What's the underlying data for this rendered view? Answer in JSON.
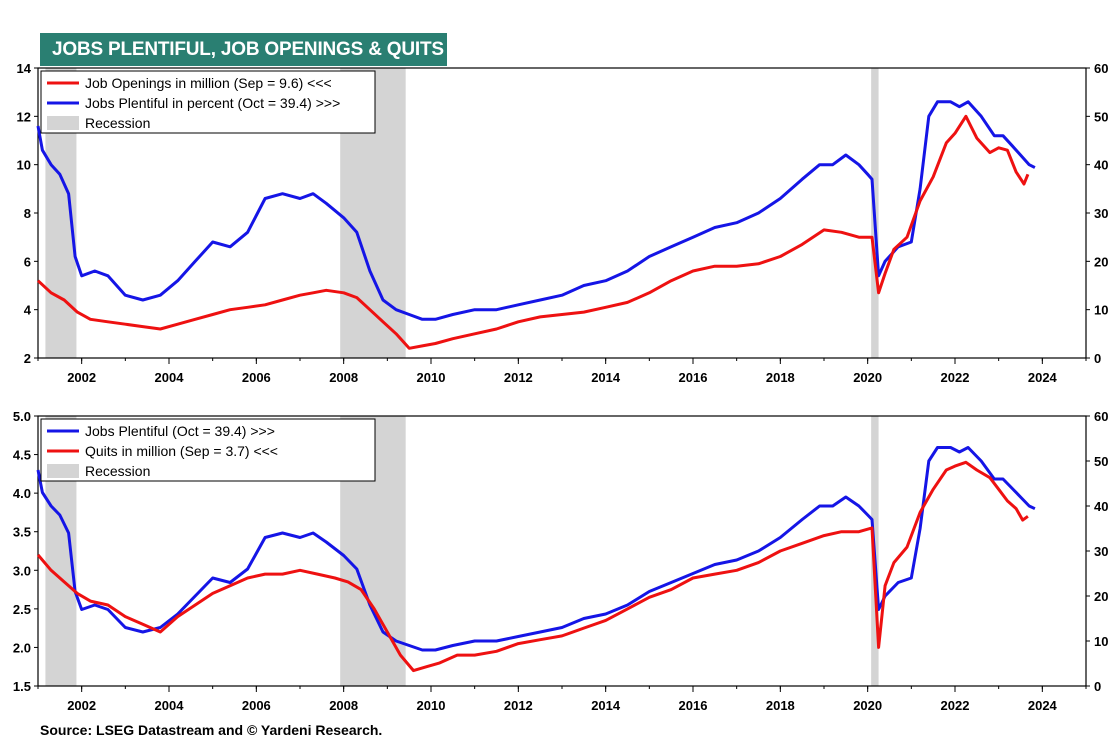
{
  "title": "JOBS PLENTIFUL, JOB OPENINGS & QUITS",
  "source": "Source: LSEG Datastream and © Yardeni Research.",
  "colors": {
    "red": "#ee1111",
    "blue": "#1515e6",
    "recession": "#d4d4d4",
    "banner": "#2a7f72"
  },
  "chart_data": [
    {
      "type": "line",
      "x_ticks": [
        "2002",
        "2004",
        "2006",
        "2008",
        "2010",
        "2012",
        "2014",
        "2016",
        "2018",
        "2020",
        "2022",
        "2024"
      ],
      "xlim": [
        2001.0,
        2025.0
      ],
      "left_ylim": [
        2,
        14
      ],
      "left_ticks": [
        "2",
        "4",
        "6",
        "8",
        "10",
        "12",
        "14"
      ],
      "right_ylim": [
        0,
        60
      ],
      "right_ticks": [
        "0",
        "10",
        "20",
        "30",
        "40",
        "50",
        "60"
      ],
      "recessions": [
        [
          2001.17,
          2001.88
        ],
        [
          2007.92,
          2009.42
        ],
        [
          2020.08,
          2020.25
        ]
      ],
      "legend": [
        {
          "label": "Job Openings in million (Sep = 9.6) <<<",
          "kind": "line",
          "color": "#ee1111"
        },
        {
          "label": "Jobs Plentiful in percent (Oct = 39.4) >>>",
          "kind": "line",
          "color": "#1515e6"
        },
        {
          "label": "Recession",
          "kind": "box",
          "color": "#d4d4d4"
        }
      ],
      "series": [
        {
          "name": "Job Openings in million (Sep = 9.6) <<<",
          "axis": "left",
          "color": "#ee1111",
          "x": [
            2001.0,
            2001.3,
            2001.6,
            2001.9,
            2002.2,
            2002.6,
            2003.0,
            2003.4,
            2003.8,
            2004.2,
            2004.6,
            2005.0,
            2005.4,
            2005.8,
            2006.2,
            2006.6,
            2007.0,
            2007.3,
            2007.6,
            2008.0,
            2008.3,
            2008.6,
            2008.9,
            2009.2,
            2009.5,
            2009.8,
            2010.1,
            2010.5,
            2011.0,
            2011.5,
            2012.0,
            2012.5,
            2013.0,
            2013.5,
            2014.0,
            2014.5,
            2015.0,
            2015.5,
            2016.0,
            2016.5,
            2017.0,
            2017.5,
            2018.0,
            2018.5,
            2019.0,
            2019.4,
            2019.8,
            2020.1,
            2020.25,
            2020.4,
            2020.6,
            2020.9,
            2021.2,
            2021.5,
            2021.8,
            2022.0,
            2022.25,
            2022.5,
            2022.8,
            2023.0,
            2023.2,
            2023.4,
            2023.58,
            2023.67
          ],
          "y": [
            5.2,
            4.7,
            4.4,
            3.9,
            3.6,
            3.5,
            3.4,
            3.3,
            3.2,
            3.4,
            3.6,
            3.8,
            4.0,
            4.1,
            4.2,
            4.4,
            4.6,
            4.7,
            4.8,
            4.7,
            4.5,
            4.0,
            3.5,
            3.0,
            2.4,
            2.5,
            2.6,
            2.8,
            3.0,
            3.2,
            3.5,
            3.7,
            3.8,
            3.9,
            4.1,
            4.3,
            4.7,
            5.2,
            5.6,
            5.8,
            5.8,
            5.9,
            6.2,
            6.7,
            7.3,
            7.2,
            7.0,
            7.0,
            4.7,
            5.5,
            6.5,
            7.0,
            8.5,
            9.5,
            10.9,
            11.3,
            12.0,
            11.1,
            10.5,
            10.7,
            10.6,
            9.7,
            9.2,
            9.6
          ]
        },
        {
          "name": "Jobs Plentiful in percent (Oct = 39.4) >>>",
          "axis": "right",
          "color": "#1515e6",
          "x": [
            2001.0,
            2001.1,
            2001.3,
            2001.5,
            2001.7,
            2001.85,
            2002.0,
            2002.3,
            2002.6,
            2003.0,
            2003.4,
            2003.8,
            2004.2,
            2004.6,
            2005.0,
            2005.4,
            2005.8,
            2006.2,
            2006.6,
            2007.0,
            2007.3,
            2007.6,
            2008.0,
            2008.3,
            2008.6,
            2008.9,
            2009.2,
            2009.5,
            2009.8,
            2010.1,
            2010.5,
            2011.0,
            2011.5,
            2012.0,
            2012.5,
            2013.0,
            2013.5,
            2014.0,
            2014.5,
            2015.0,
            2015.5,
            2016.0,
            2016.5,
            2017.0,
            2017.5,
            2018.0,
            2018.5,
            2018.9,
            2019.2,
            2019.5,
            2019.8,
            2020.0,
            2020.1,
            2020.25,
            2020.4,
            2020.7,
            2021.0,
            2021.2,
            2021.4,
            2021.6,
            2021.9,
            2022.1,
            2022.3,
            2022.6,
            2022.9,
            2023.1,
            2023.3,
            2023.5,
            2023.7,
            2023.83
          ],
          "y": [
            48,
            43,
            40,
            38,
            34,
            21,
            17,
            18,
            17,
            13,
            12,
            13,
            16,
            20,
            24,
            23,
            26,
            33,
            34,
            33,
            34,
            32,
            29,
            26,
            18,
            12,
            10,
            9,
            8,
            8,
            9,
            10,
            10,
            11,
            12,
            13,
            15,
            16,
            18,
            21,
            23,
            25,
            27,
            28,
            30,
            33,
            37,
            40,
            40,
            42,
            40,
            38,
            37,
            17,
            20,
            23,
            24,
            35,
            50,
            53,
            53,
            52,
            53,
            50,
            46,
            46,
            44,
            42,
            40,
            39.4
          ]
        }
      ]
    },
    {
      "type": "line",
      "x_ticks": [
        "2002",
        "2004",
        "2006",
        "2008",
        "2010",
        "2012",
        "2014",
        "2016",
        "2018",
        "2020",
        "2022",
        "2024"
      ],
      "xlim": [
        2001.0,
        2025.0
      ],
      "left_ylim": [
        1.5,
        5.0
      ],
      "left_ticks": [
        "1.5",
        "2.0",
        "2.5",
        "3.0",
        "3.5",
        "4.0",
        "4.5",
        "5.0"
      ],
      "right_ylim": [
        0,
        60
      ],
      "right_ticks": [
        "0",
        "10",
        "20",
        "30",
        "40",
        "50",
        "60"
      ],
      "recessions": [
        [
          2001.17,
          2001.88
        ],
        [
          2007.92,
          2009.42
        ],
        [
          2020.08,
          2020.25
        ]
      ],
      "legend": [
        {
          "label": "Jobs Plentiful (Oct = 39.4) >>>",
          "kind": "line",
          "color": "#1515e6"
        },
        {
          "label": "Quits  in million (Sep = 3.7) <<<",
          "kind": "line",
          "color": "#ee1111"
        },
        {
          "label": "Recession",
          "kind": "box",
          "color": "#d4d4d4"
        }
      ],
      "series": [
        {
          "name": "Quits  in million (Sep = 3.7) <<<",
          "axis": "left",
          "color": "#ee1111",
          "x": [
            2001.0,
            2001.3,
            2001.6,
            2001.9,
            2002.2,
            2002.6,
            2003.0,
            2003.4,
            2003.8,
            2004.2,
            2004.6,
            2005.0,
            2005.4,
            2005.8,
            2006.2,
            2006.6,
            2007.0,
            2007.4,
            2007.8,
            2008.1,
            2008.4,
            2008.7,
            2009.0,
            2009.3,
            2009.6,
            2009.9,
            2010.2,
            2010.6,
            2011.0,
            2011.5,
            2012.0,
            2012.5,
            2013.0,
            2013.5,
            2014.0,
            2014.5,
            2015.0,
            2015.5,
            2016.0,
            2016.5,
            2017.0,
            2017.5,
            2018.0,
            2018.5,
            2019.0,
            2019.4,
            2019.8,
            2020.1,
            2020.25,
            2020.4,
            2020.6,
            2020.9,
            2021.2,
            2021.5,
            2021.8,
            2022.0,
            2022.25,
            2022.5,
            2022.8,
            2023.0,
            2023.2,
            2023.4,
            2023.55,
            2023.67
          ],
          "y": [
            3.2,
            3.0,
            2.85,
            2.7,
            2.6,
            2.55,
            2.4,
            2.3,
            2.2,
            2.4,
            2.55,
            2.7,
            2.8,
            2.9,
            2.95,
            2.95,
            3.0,
            2.95,
            2.9,
            2.85,
            2.75,
            2.5,
            2.2,
            1.9,
            1.7,
            1.75,
            1.8,
            1.9,
            1.9,
            1.95,
            2.05,
            2.1,
            2.15,
            2.25,
            2.35,
            2.5,
            2.65,
            2.75,
            2.9,
            2.95,
            3.0,
            3.1,
            3.25,
            3.35,
            3.45,
            3.5,
            3.5,
            3.55,
            2.0,
            2.8,
            3.1,
            3.3,
            3.75,
            4.05,
            4.3,
            4.35,
            4.4,
            4.3,
            4.2,
            4.05,
            3.9,
            3.8,
            3.65,
            3.7
          ]
        },
        {
          "name": "Jobs Plentiful (Oct = 39.4) >>>",
          "axis": "right",
          "color": "#1515e6",
          "x": [
            2001.0,
            2001.1,
            2001.3,
            2001.5,
            2001.7,
            2001.85,
            2002.0,
            2002.3,
            2002.6,
            2003.0,
            2003.4,
            2003.8,
            2004.2,
            2004.6,
            2005.0,
            2005.4,
            2005.8,
            2006.2,
            2006.6,
            2007.0,
            2007.3,
            2007.6,
            2008.0,
            2008.3,
            2008.6,
            2008.9,
            2009.2,
            2009.5,
            2009.8,
            2010.1,
            2010.5,
            2011.0,
            2011.5,
            2012.0,
            2012.5,
            2013.0,
            2013.5,
            2014.0,
            2014.5,
            2015.0,
            2015.5,
            2016.0,
            2016.5,
            2017.0,
            2017.5,
            2018.0,
            2018.5,
            2018.9,
            2019.2,
            2019.5,
            2019.8,
            2020.0,
            2020.1,
            2020.25,
            2020.4,
            2020.7,
            2021.0,
            2021.2,
            2021.4,
            2021.6,
            2021.9,
            2022.1,
            2022.3,
            2022.6,
            2022.9,
            2023.1,
            2023.3,
            2023.5,
            2023.7,
            2023.83
          ],
          "y": [
            48,
            43,
            40,
            38,
            34,
            21,
            17,
            18,
            17,
            13,
            12,
            13,
            16,
            20,
            24,
            23,
            26,
            33,
            34,
            33,
            34,
            32,
            29,
            26,
            18,
            12,
            10,
            9,
            8,
            8,
            9,
            10,
            10,
            11,
            12,
            13,
            15,
            16,
            18,
            21,
            23,
            25,
            27,
            28,
            30,
            33,
            37,
            40,
            40,
            42,
            40,
            38,
            37,
            17,
            20,
            23,
            24,
            35,
            50,
            53,
            53,
            52,
            53,
            50,
            46,
            46,
            44,
            42,
            40,
            39.4
          ]
        }
      ]
    }
  ]
}
